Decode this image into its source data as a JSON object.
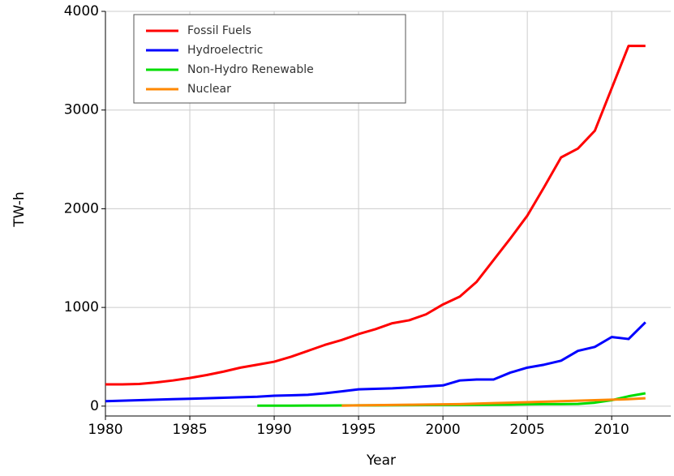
{
  "chart_data": {
    "type": "line",
    "xlabel": "Year",
    "ylabel": "TW-h",
    "x": [
      1980,
      1981,
      1982,
      1983,
      1984,
      1985,
      1986,
      1987,
      1988,
      1989,
      1990,
      1991,
      1992,
      1993,
      1994,
      1995,
      1996,
      1997,
      1998,
      1999,
      2000,
      2001,
      2002,
      2003,
      2004,
      2005,
      2006,
      2007,
      2008,
      2009,
      2010,
      2011,
      2012
    ],
    "series": [
      {
        "name": "Fossil Fuels",
        "color": "#ff0000",
        "values": [
          220,
          220,
          225,
          240,
          260,
          285,
          315,
          350,
          390,
          420,
          450,
          500,
          560,
          620,
          670,
          730,
          780,
          840,
          870,
          930,
          1030,
          1110,
          1260,
          1480,
          1700,
          1930,
          2220,
          2520,
          2610,
          2790,
          3220,
          3650,
          3650
        ]
      },
      {
        "name": "Hydroelectric",
        "color": "#0000ff",
        "values": [
          50,
          55,
          60,
          65,
          70,
          75,
          80,
          85,
          90,
          95,
          105,
          110,
          115,
          130,
          150,
          170,
          175,
          180,
          190,
          200,
          210,
          260,
          270,
          270,
          340,
          390,
          420,
          460,
          560,
          600,
          700,
          680,
          850
        ]
      },
      {
        "name": "Non-Hydro Renewable",
        "color": "#00dd00",
        "values": [
          null,
          null,
          null,
          null,
          null,
          null,
          null,
          null,
          null,
          5,
          5,
          5,
          6,
          6,
          7,
          8,
          8,
          9,
          10,
          11,
          12,
          12,
          13,
          14,
          15,
          18,
          20,
          20,
          22,
          35,
          60,
          100,
          130
        ]
      },
      {
        "name": "Nuclear",
        "color": "#ff8800",
        "values": [
          null,
          null,
          null,
          null,
          null,
          null,
          null,
          null,
          null,
          null,
          null,
          null,
          null,
          null,
          5,
          8,
          10,
          12,
          14,
          16,
          18,
          20,
          25,
          30,
          35,
          40,
          45,
          50,
          55,
          60,
          65,
          70,
          80
        ]
      }
    ],
    "xlim": [
      1980,
      2013.5
    ],
    "ylim": [
      -100,
      4000
    ],
    "xticks": [
      1980,
      1985,
      1990,
      1995,
      2000,
      2005,
      2010
    ],
    "yticks": [
      0,
      1000,
      2000,
      3000,
      4000
    ],
    "grid": true,
    "legend": "upper left"
  }
}
